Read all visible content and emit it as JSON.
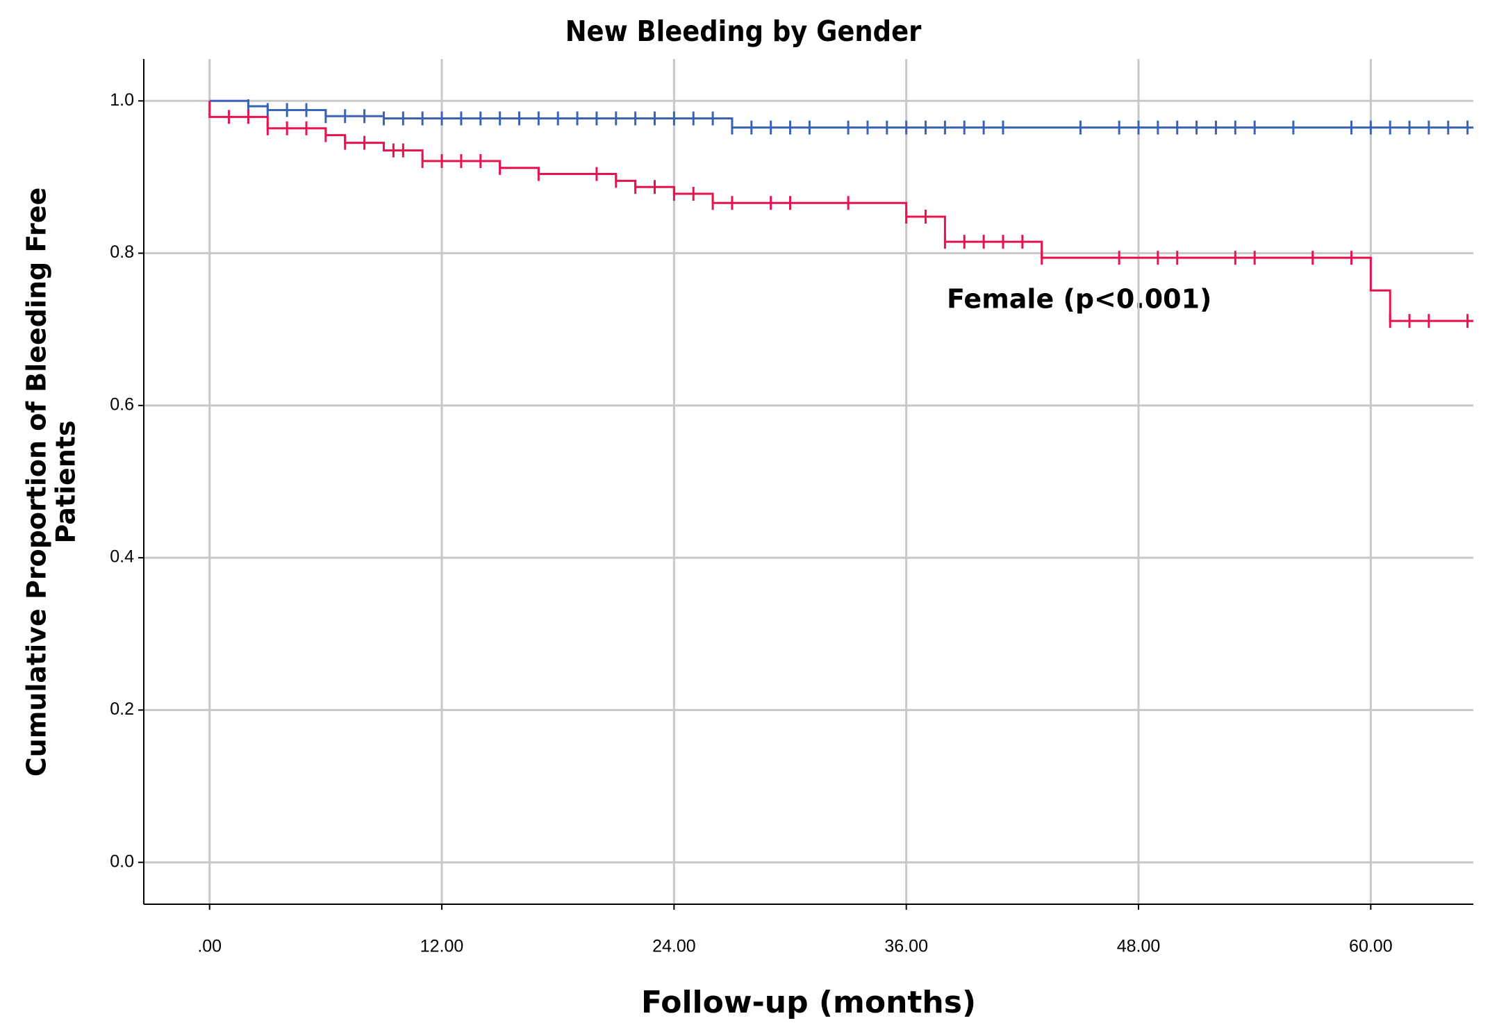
{
  "chart_data": {
    "type": "step",
    "title": "New Bleeding by Gender",
    "xlabel": "Follow-up (months)",
    "ylabel": [
      "Cumulative Proportion of Bleeding Free",
      "Patients"
    ],
    "annotation": "Female (p<0.001)",
    "annotation_color": "#e8124f",
    "xlim": [
      -3.4,
      65.3
    ],
    "ylim": [
      -0.055,
      1.055
    ],
    "xticks": [
      {
        "value": 0,
        "label": ".00"
      },
      {
        "value": 12,
        "label": "12.00"
      },
      {
        "value": 24,
        "label": "24.00"
      },
      {
        "value": 36,
        "label": "36.00"
      },
      {
        "value": 48,
        "label": "48.00"
      },
      {
        "value": 60,
        "label": "60.00"
      }
    ],
    "yticks": [
      {
        "value": 0,
        "label": "0.0"
      },
      0.2,
      0.4,
      0.6,
      0.8,
      {
        "value": 1,
        "label": "1.0"
      }
    ],
    "grid": true,
    "series": [
      {
        "color": "#3a63b8",
        "x": [
          0,
          2,
          3,
          6,
          9,
          27,
          65.3
        ],
        "values": [
          1.0,
          0.993,
          0.988,
          0.98,
          0.977,
          0.965,
          0.965
        ],
        "censor_x": [
          2,
          3,
          4,
          5,
          6,
          7,
          8,
          9,
          10,
          11,
          12,
          13,
          14,
          15,
          16,
          17,
          18,
          19,
          20,
          21,
          22,
          23,
          24,
          25,
          26,
          27,
          28,
          29,
          30,
          31,
          33,
          34,
          35,
          36,
          37,
          38,
          39,
          40,
          41,
          45,
          47,
          48,
          49,
          50,
          51,
          52,
          53,
          54,
          56,
          59,
          60,
          61,
          62,
          63,
          64,
          65
        ],
        "censor_values": [
          0.993,
          0.988,
          0.988,
          0.988,
          0.98,
          0.98,
          0.98,
          0.977,
          0.977,
          0.977,
          0.977,
          0.977,
          0.977,
          0.977,
          0.977,
          0.977,
          0.977,
          0.977,
          0.977,
          0.977,
          0.977,
          0.977,
          0.977,
          0.977,
          0.977,
          0.965,
          0.965,
          0.965,
          0.965,
          0.965,
          0.965,
          0.965,
          0.965,
          0.965,
          0.965,
          0.965,
          0.965,
          0.965,
          0.965,
          0.965,
          0.965,
          0.965,
          0.965,
          0.965,
          0.965,
          0.965,
          0.965,
          0.965,
          0.965,
          0.965,
          0.965,
          0.965,
          0.965,
          0.965,
          0.965,
          0.965
        ]
      },
      {
        "color": "#e8124f",
        "x": [
          0,
          0,
          3,
          6,
          7,
          9,
          11,
          15,
          17,
          21,
          22,
          24,
          26,
          36,
          38,
          43,
          60,
          61,
          65.3
        ],
        "values": [
          1.0,
          0.979,
          0.964,
          0.955,
          0.945,
          0.935,
          0.921,
          0.912,
          0.904,
          0.895,
          0.887,
          0.878,
          0.866,
          0.848,
          0.815,
          0.794,
          0.751,
          0.711,
          0.711
        ],
        "censor_x": [
          1,
          2,
          3,
          4,
          5,
          6,
          7,
          8,
          9.5,
          10,
          11,
          12,
          13,
          14,
          15,
          17,
          20,
          21,
          22,
          23,
          24,
          25,
          26,
          27,
          29,
          30,
          33,
          36,
          37,
          38,
          39,
          40,
          41,
          42,
          43,
          47,
          49,
          50,
          53,
          54,
          57,
          59,
          61,
          62,
          63,
          65
        ],
        "censor_values": [
          0.979,
          0.979,
          0.964,
          0.964,
          0.964,
          0.955,
          0.945,
          0.945,
          0.935,
          0.935,
          0.921,
          0.921,
          0.921,
          0.921,
          0.912,
          0.904,
          0.904,
          0.895,
          0.887,
          0.887,
          0.878,
          0.878,
          0.866,
          0.866,
          0.866,
          0.866,
          0.866,
          0.848,
          0.848,
          0.815,
          0.815,
          0.815,
          0.815,
          0.815,
          0.794,
          0.794,
          0.794,
          0.794,
          0.794,
          0.794,
          0.794,
          0.794,
          0.711,
          0.711,
          0.711,
          0.711
        ]
      }
    ]
  }
}
